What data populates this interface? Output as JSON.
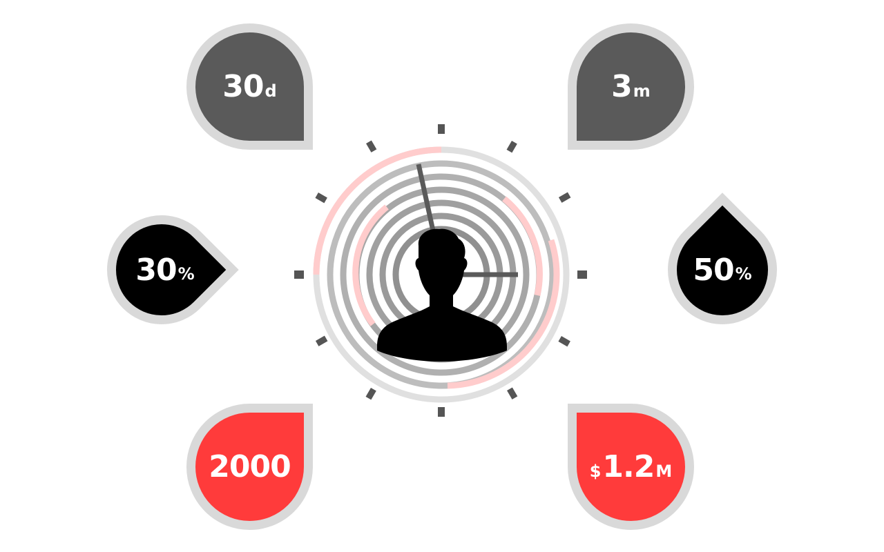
{
  "stats": {
    "top_left": {
      "value": "30",
      "unit": "d"
    },
    "top_right": {
      "value": "3",
      "unit": "m"
    },
    "middle_left": {
      "value": "30",
      "unit": "%"
    },
    "middle_right": {
      "value": "50",
      "unit": "%"
    },
    "bottom_left": {
      "value": "2000"
    },
    "bottom_right": {
      "prefix": "$",
      "value": "1.2",
      "unit": "M"
    }
  },
  "colors": {
    "gray": "#5a5a5a",
    "black": "#000000",
    "red": "#ff3b3b",
    "border": "#d9d9d9",
    "ring": "#a6a6a6",
    "highlight": "#ffcccc"
  },
  "icons": {
    "center": "person-silhouette-icon"
  }
}
